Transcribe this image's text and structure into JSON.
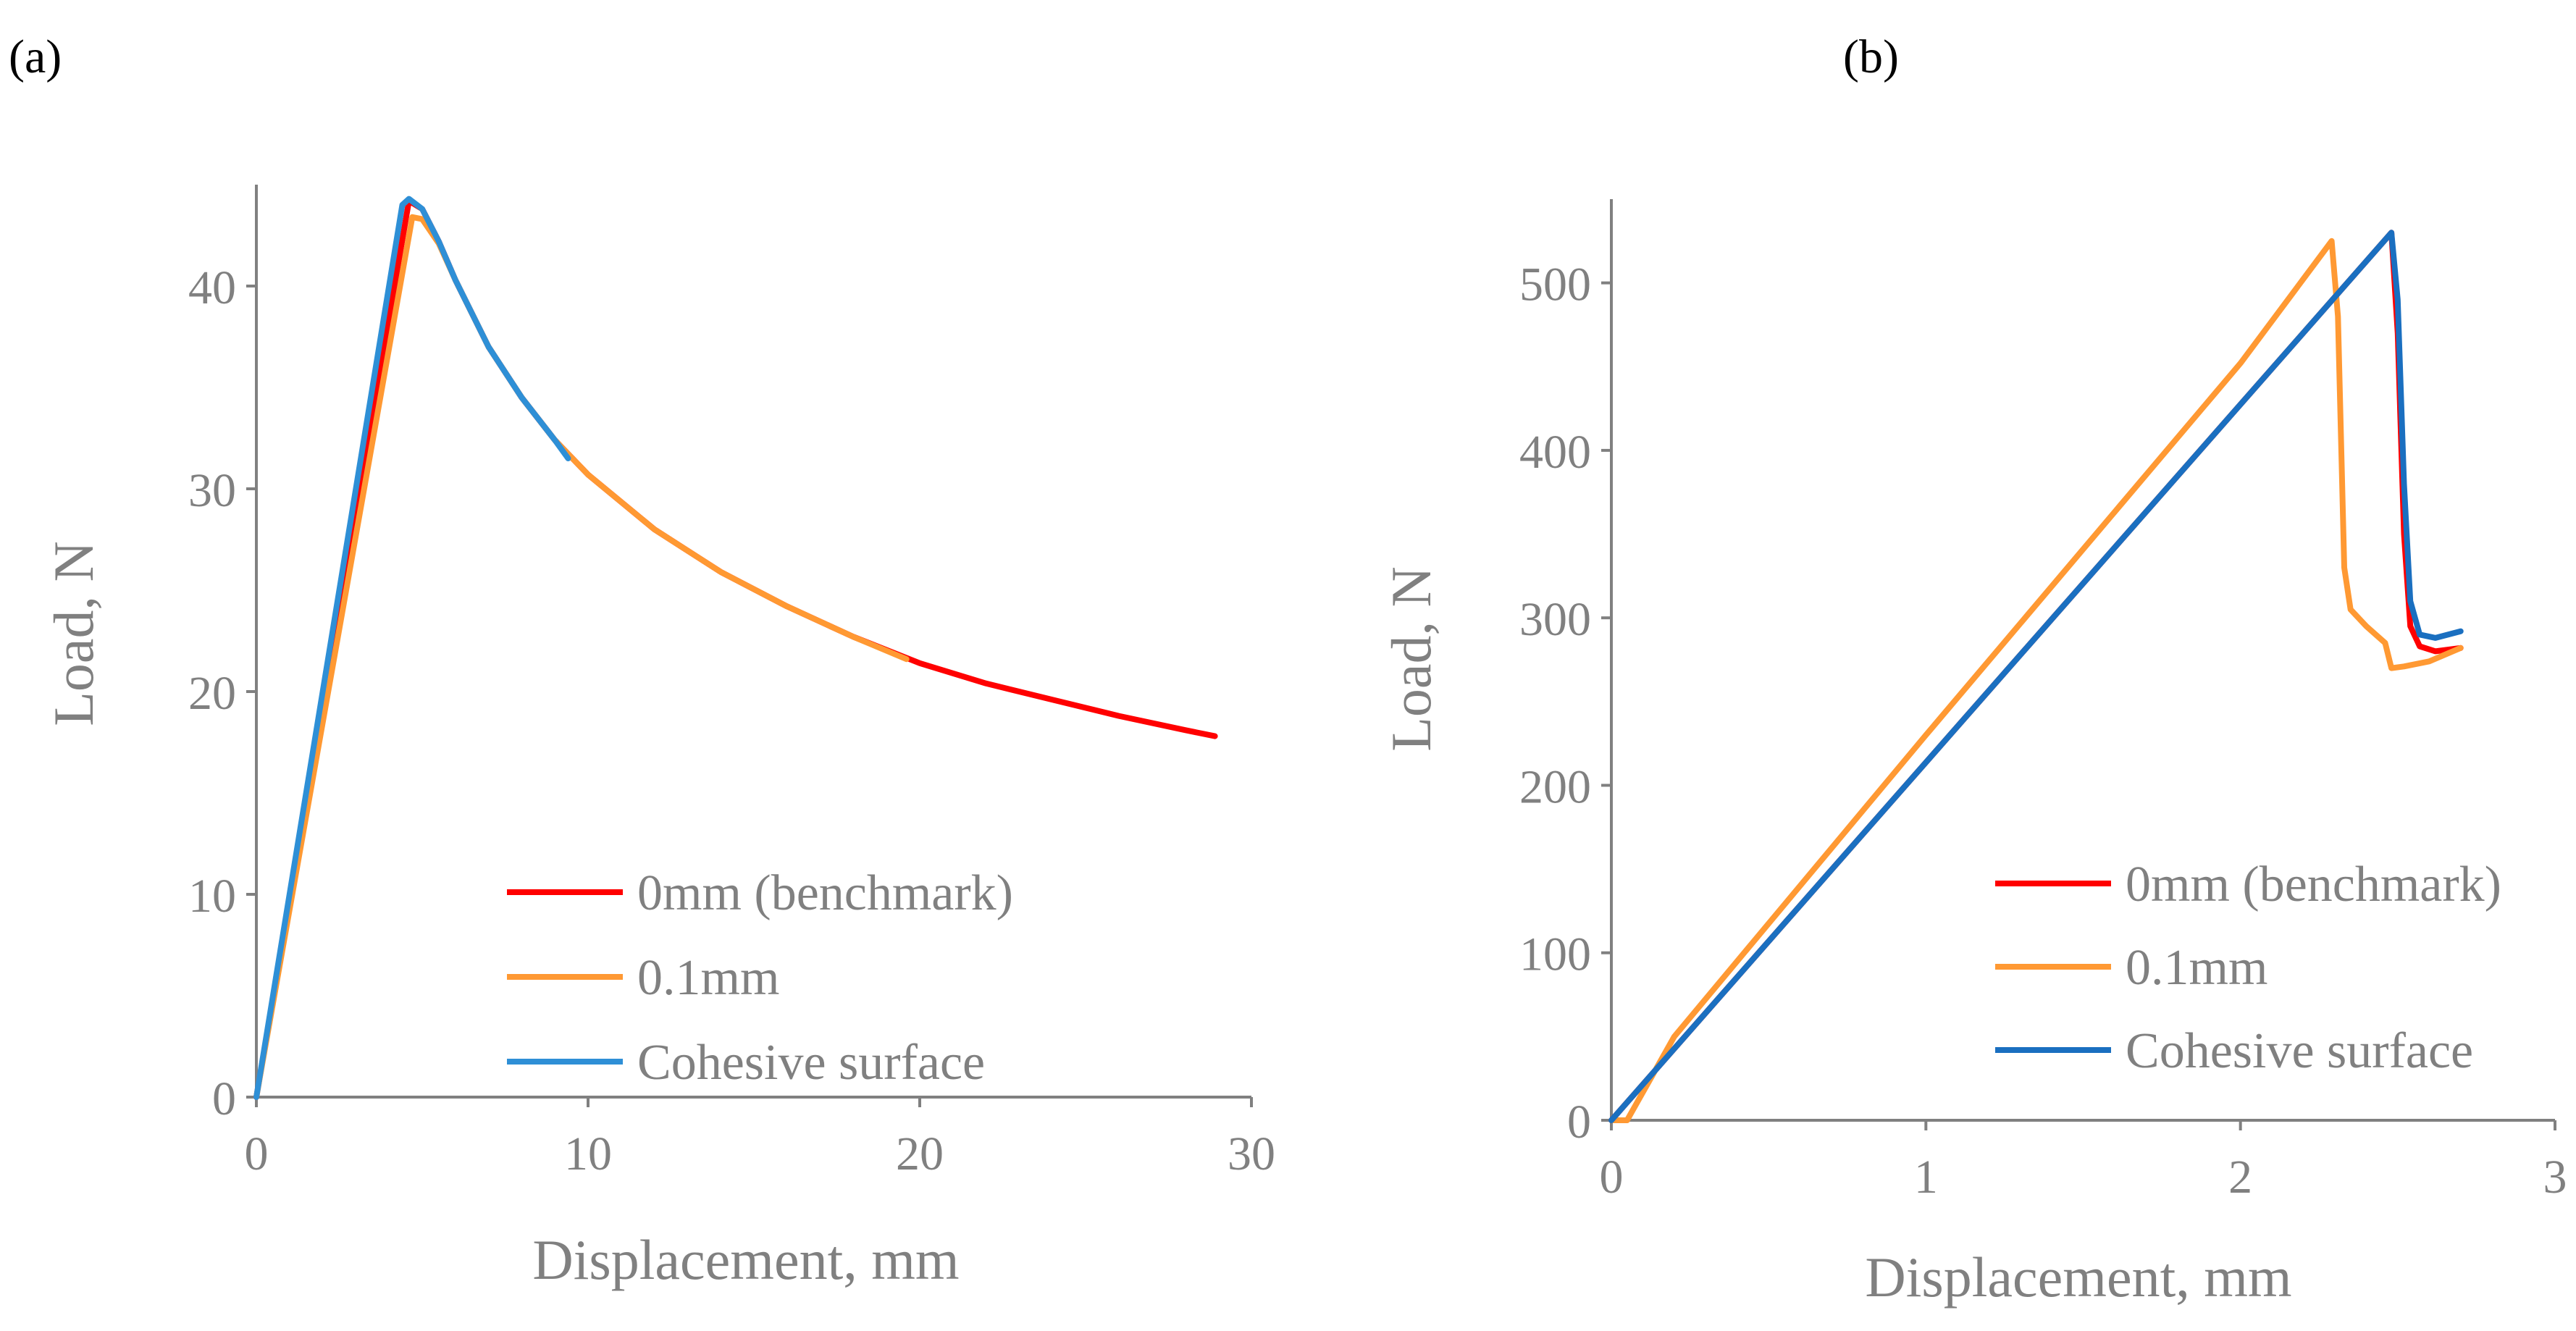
{
  "chart_data": [
    {
      "panel_label": "(a)",
      "type": "line",
      "title": "",
      "xlabel": "Displacement, mm",
      "ylabel": "Load, N",
      "xlim": [
        0,
        30
      ],
      "ylim": [
        0,
        45
      ],
      "xticks": [
        0,
        10,
        20,
        30
      ],
      "yticks": [
        0,
        10,
        20,
        30,
        40
      ],
      "grid": false,
      "legend_position": "bottom-right",
      "series": [
        {
          "name": "0mm (benchmark)",
          "color": "#ff0000",
          "x": [
            0,
            4.6,
            5.0,
            5.5,
            6.0,
            7.0,
            8.0,
            9.0,
            10.0,
            12.0,
            14.0,
            16.0,
            18.0,
            20.0,
            22.0,
            24.0,
            26.0,
            28.0,
            28.9
          ],
          "y": [
            0,
            44.2,
            43.8,
            42.2,
            40.3,
            37.0,
            34.5,
            32.4,
            30.7,
            28.0,
            25.9,
            24.2,
            22.7,
            21.4,
            20.4,
            19.6,
            18.8,
            18.1,
            17.8
          ]
        },
        {
          "name": "0.1mm",
          "color": "#ff9933",
          "x": [
            0,
            4.7,
            5.0,
            5.5,
            6.0,
            7.0,
            8.0,
            9.0,
            10.0,
            12.0,
            14.0,
            16.0,
            18.0,
            19.6
          ],
          "y": [
            0,
            43.4,
            43.3,
            42.1,
            40.3,
            37.0,
            34.5,
            32.4,
            30.7,
            28.0,
            25.9,
            24.2,
            22.7,
            21.6
          ]
        },
        {
          "name": "Cohesive surface",
          "color": "#2e8fd6",
          "x": [
            0,
            4.4,
            4.6,
            5.0,
            5.5,
            6.0,
            7.0,
            8.0,
            9.0,
            9.4
          ],
          "y": [
            0,
            44.0,
            44.3,
            43.8,
            42.2,
            40.3,
            37.0,
            34.5,
            32.4,
            31.5
          ]
        }
      ]
    },
    {
      "panel_label": "(b)",
      "type": "line",
      "title": "",
      "xlabel": "Displacement, mm",
      "ylabel": "Load, N",
      "xlim": [
        0,
        3
      ],
      "ylim": [
        0,
        550
      ],
      "xticks": [
        0,
        1,
        2,
        3
      ],
      "yticks": [
        0,
        100,
        200,
        300,
        400,
        500
      ],
      "grid": false,
      "legend_position": "bottom-right",
      "series": [
        {
          "name": "0mm (benchmark)",
          "color": "#ff0000",
          "x": [
            0,
            2.48,
            2.5,
            2.52,
            2.54,
            2.57,
            2.62,
            2.7
          ],
          "y": [
            0,
            530,
            470,
            350,
            295,
            283,
            280,
            282
          ]
        },
        {
          "name": "0.1mm",
          "color": "#ff9933",
          "x": [
            0,
            0.05,
            0.2,
            1.0,
            2.0,
            2.29,
            2.31,
            2.33,
            2.35,
            2.4,
            2.46,
            2.48,
            2.52,
            2.6,
            2.7
          ],
          "y": [
            0,
            0,
            50,
            230,
            452,
            525,
            480,
            330,
            305,
            295,
            285,
            270,
            271,
            274,
            282
          ]
        },
        {
          "name": "Cohesive surface",
          "color": "#1a6fc0",
          "x": [
            0,
            2.48,
            2.5,
            2.52,
            2.54,
            2.57,
            2.62,
            2.7
          ],
          "y": [
            0,
            530,
            490,
            380,
            310,
            290,
            288,
            292
          ]
        }
      ]
    }
  ]
}
